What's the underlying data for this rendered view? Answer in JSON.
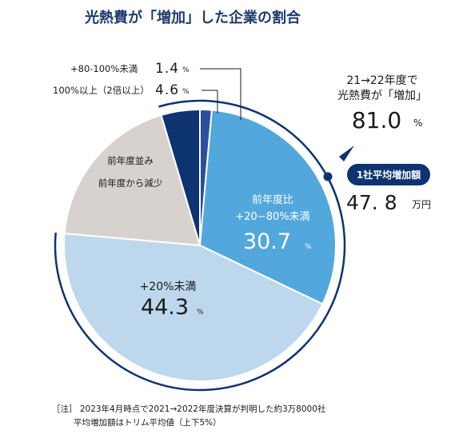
{
  "title": "光熱費が「増加」した企業の割合",
  "chart_data": {
    "type": "pie",
    "title": "光熱費が「増加」した企業の割合",
    "slices": [
      {
        "label": "+80-100%未満",
        "value": 1.4,
        "color": "#2b4f9a"
      },
      {
        "label": "+20−80%未満",
        "group": "前年度比",
        "value": 30.7,
        "color": "#52a7dd"
      },
      {
        "label": "+20%未満",
        "value": 44.3,
        "color": "#bdd8ec"
      },
      {
        "label": "前年度並み 前年度から減少",
        "value": 19.0,
        "color": "#d7d2cd"
      },
      {
        "label": "100%以上（2倍以上）",
        "value": 4.6,
        "color": "#0d3470"
      }
    ],
    "unit": "%"
  },
  "labels": {
    "s80_100": {
      "text": "+80-100%未満",
      "value": "1.4",
      "unit": "%"
    },
    "s100": {
      "text": "100%以上（2倍以上）",
      "value": "4.6",
      "unit": "%"
    },
    "s20_80": {
      "line1": "前年度比",
      "line2": "+20−80%未満",
      "value": "30.7",
      "unit": "%"
    },
    "s20": {
      "text": "+20%未満",
      "value": "44.3",
      "unit": "%"
    },
    "flat": {
      "line1": "前年度並み",
      "line2": "前年度から減少"
    }
  },
  "callout": {
    "line1": "21→22年度で",
    "line2": "光熱費が「増加」",
    "value": "81.0",
    "unit": "%",
    "badge": "1社平均増加額",
    "amount": "47. 8",
    "amount_unit": "万円"
  },
  "note": {
    "line1": "［注］ 2023年4月時点で2021→2022年度決算が判明した約3万8000社",
    "line2": "平均増加額はトリム平均値（上下5%）"
  },
  "colors": {
    "title": "#1e3a6e",
    "arc": "#0d3470",
    "badge": "#0d3470"
  }
}
